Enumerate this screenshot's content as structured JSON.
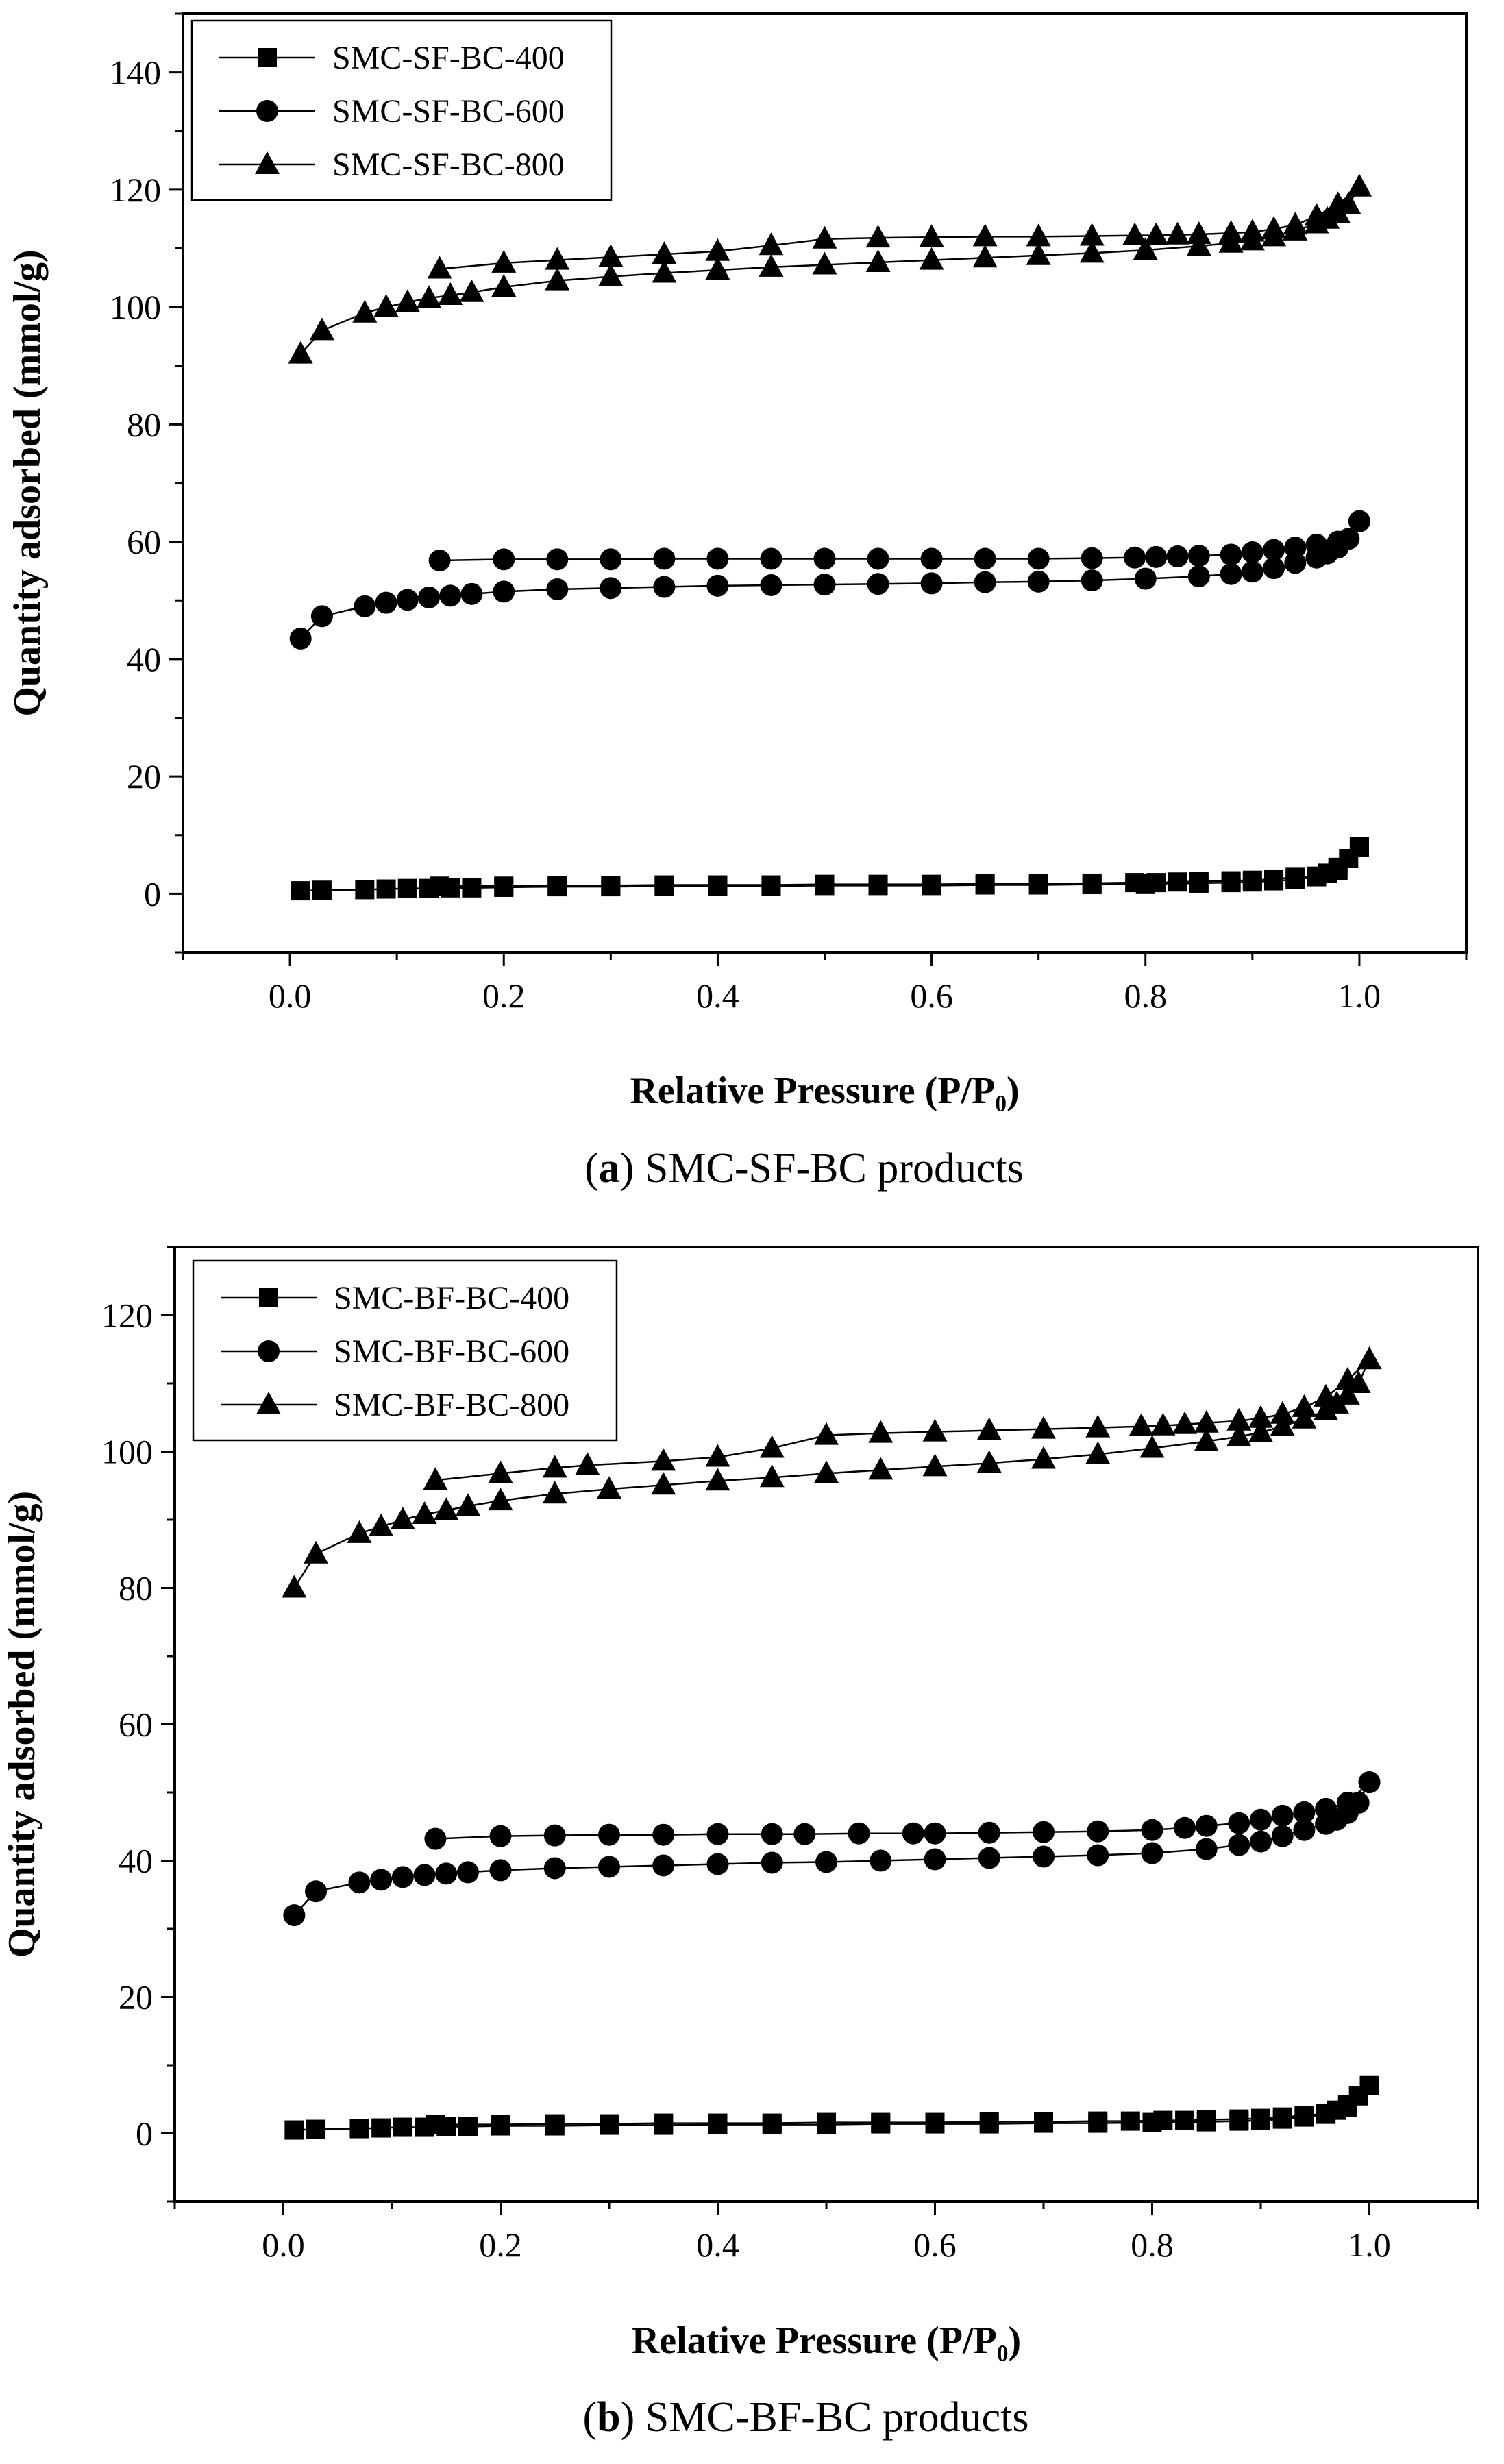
{
  "chart_data": [
    {
      "type": "scatter",
      "caption": {
        "letter": "a",
        "text": "SMC-SF-BC products"
      },
      "xlabel": "Relative Pressure (P/P₀)",
      "ylabel": "Quantity adsorbed (mmol/g)",
      "xlim": [
        -0.1,
        1.1
      ],
      "ylim": [
        -10,
        150
      ],
      "xticks": [
        0.0,
        0.2,
        0.4,
        0.6,
        0.8,
        1.0
      ],
      "xtick_labels": [
        "0.0",
        "0.2",
        "0.4",
        "0.6",
        "0.8",
        "1.0"
      ],
      "yticks": [
        0,
        20,
        40,
        60,
        80,
        100,
        120,
        140
      ],
      "ytick_labels": [
        "0",
        "20",
        "40",
        "60",
        "80",
        "100",
        "120",
        "140"
      ],
      "grid": false,
      "legend_position": "top-left",
      "series": [
        {
          "name": "SMC-SF-BC-400",
          "marker": "square",
          "adsorption": {
            "x": [
              0.01,
              0.03,
              0.07,
              0.09,
              0.11,
              0.13,
              0.15,
              0.17,
              0.2,
              0.25,
              0.3,
              0.35,
              0.4,
              0.45,
              0.5,
              0.55,
              0.6,
              0.65,
              0.7,
              0.75,
              0.8,
              0.85,
              0.88,
              0.9,
              0.92,
              0.94,
              0.96,
              0.97,
              0.98,
              0.99,
              1.0
            ],
            "y": [
              0.5,
              0.6,
              0.7,
              0.8,
              0.9,
              0.9,
              1.0,
              1.0,
              1.1,
              1.2,
              1.2,
              1.3,
              1.3,
              1.3,
              1.4,
              1.4,
              1.4,
              1.5,
              1.5,
              1.6,
              1.7,
              1.8,
              1.9,
              2.0,
              2.2,
              2.4,
              2.9,
              3.5,
              4.5,
              6.0,
              8.0
            ]
          },
          "desorption": {
            "x": [
              1.0,
              0.98,
              0.96,
              0.94,
              0.92,
              0.9,
              0.88,
              0.85,
              0.83,
              0.81,
              0.79,
              0.75,
              0.7,
              0.65,
              0.6,
              0.55,
              0.5,
              0.45,
              0.4,
              0.35,
              0.3,
              0.25,
              0.2,
              0.14
            ],
            "y": [
              8.0,
              4.0,
              3.0,
              2.8,
              2.5,
              2.3,
              2.2,
              2.1,
              2.0,
              1.9,
              1.9,
              1.8,
              1.7,
              1.7,
              1.6,
              1.6,
              1.6,
              1.5,
              1.5,
              1.5,
              1.4,
              1.4,
              1.3,
              1.3
            ]
          }
        },
        {
          "name": "SMC-SF-BC-600",
          "marker": "circle",
          "adsorption": {
            "x": [
              0.01,
              0.03,
              0.07,
              0.09,
              0.11,
              0.13,
              0.15,
              0.17,
              0.2,
              0.25,
              0.3,
              0.35,
              0.4,
              0.45,
              0.5,
              0.55,
              0.6,
              0.65,
              0.7,
              0.75,
              0.8,
              0.85,
              0.88,
              0.9,
              0.92,
              0.94,
              0.96,
              0.97,
              0.98,
              0.99,
              1.0
            ],
            "y": [
              43.5,
              47.3,
              49.0,
              49.6,
              50.1,
              50.5,
              50.8,
              51.1,
              51.5,
              51.9,
              52.1,
              52.3,
              52.5,
              52.6,
              52.7,
              52.8,
              52.9,
              53.1,
              53.2,
              53.4,
              53.7,
              54.1,
              54.5,
              54.9,
              55.5,
              56.4,
              57.3,
              58.0,
              59.0,
              60.5,
              63.5
            ]
          },
          "desorption": {
            "x": [
              1.0,
              0.98,
              0.96,
              0.94,
              0.92,
              0.9,
              0.88,
              0.85,
              0.83,
              0.81,
              0.79,
              0.75,
              0.7,
              0.65,
              0.6,
              0.55,
              0.5,
              0.45,
              0.4,
              0.35,
              0.3,
              0.25,
              0.2,
              0.14
            ],
            "y": [
              63.5,
              60.0,
              59.5,
              59.0,
              58.6,
              58.2,
              57.8,
              57.6,
              57.5,
              57.4,
              57.3,
              57.2,
              57.1,
              57.1,
              57.1,
              57.1,
              57.1,
              57.1,
              57.1,
              57.1,
              57.0,
              57.0,
              57.0,
              56.8
            ]
          }
        },
        {
          "name": "SMC-SF-BC-800",
          "marker": "triangle",
          "adsorption": {
            "x": [
              0.01,
              0.03,
              0.07,
              0.09,
              0.11,
              0.13,
              0.15,
              0.17,
              0.2,
              0.25,
              0.3,
              0.35,
              0.4,
              0.45,
              0.5,
              0.55,
              0.6,
              0.65,
              0.7,
              0.75,
              0.8,
              0.85,
              0.88,
              0.9,
              0.92,
              0.94,
              0.96,
              0.97,
              0.98,
              0.99,
              1.0
            ],
            "y": [
              92.0,
              96.0,
              99.0,
              100.0,
              100.8,
              101.5,
              102.0,
              102.5,
              103.4,
              104.5,
              105.2,
              105.8,
              106.3,
              106.8,
              107.2,
              107.6,
              108.0,
              108.4,
              108.8,
              109.2,
              109.7,
              110.4,
              110.9,
              111.3,
              112.0,
              113.0,
              114.2,
              115.0,
              116.0,
              117.5,
              120.5
            ]
          },
          "desorption": {
            "x": [
              1.0,
              0.98,
              0.96,
              0.94,
              0.92,
              0.9,
              0.88,
              0.85,
              0.83,
              0.81,
              0.79,
              0.75,
              0.7,
              0.65,
              0.6,
              0.55,
              0.5,
              0.45,
              0.4,
              0.35,
              0.3,
              0.25,
              0.2,
              0.14
            ],
            "y": [
              120.5,
              117.5,
              115.5,
              114.0,
              113.3,
              112.8,
              112.6,
              112.4,
              112.3,
              112.2,
              112.2,
              112.1,
              112.0,
              112.0,
              111.9,
              111.8,
              111.6,
              110.5,
              109.5,
              109.0,
              108.5,
              108.0,
              107.5,
              106.5
            ]
          }
        }
      ]
    },
    {
      "type": "scatter",
      "caption": {
        "letter": "b",
        "text": "SMC-BF-BC products"
      },
      "xlabel": "Relative Pressure (P/P₀)",
      "ylabel": "Quantity adsorbed (mmol/g)",
      "xlim": [
        -0.1,
        1.1
      ],
      "ylim": [
        -10,
        130
      ],
      "xticks": [
        0.0,
        0.2,
        0.4,
        0.6,
        0.8,
        1.0
      ],
      "xtick_labels": [
        "0.0",
        "0.2",
        "0.4",
        "0.6",
        "0.8",
        "1.0"
      ],
      "yticks": [
        0,
        20,
        40,
        60,
        80,
        100,
        120
      ],
      "ytick_labels": [
        "0",
        "20",
        "40",
        "60",
        "80",
        "100",
        "120"
      ],
      "grid": false,
      "legend_position": "top-left",
      "series": [
        {
          "name": "SMC-BF-BC-400",
          "marker": "square",
          "adsorption": {
            "x": [
              0.01,
              0.03,
              0.07,
              0.09,
              0.11,
              0.13,
              0.15,
              0.17,
              0.2,
              0.25,
              0.3,
              0.35,
              0.4,
              0.45,
              0.5,
              0.55,
              0.6,
              0.65,
              0.7,
              0.75,
              0.8,
              0.85,
              0.88,
              0.9,
              0.92,
              0.94,
              0.96,
              0.97,
              0.98,
              0.99,
              1.0
            ],
            "y": [
              0.5,
              0.6,
              0.7,
              0.8,
              0.9,
              0.9,
              1.0,
              1.0,
              1.1,
              1.1,
              1.2,
              1.2,
              1.3,
              1.3,
              1.3,
              1.4,
              1.4,
              1.4,
              1.5,
              1.5,
              1.6,
              1.7,
              1.8,
              1.9,
              2.1,
              2.4,
              2.8,
              3.4,
              4.2,
              5.5,
              7.0
            ]
          },
          "desorption": {
            "x": [
              1.0,
              0.98,
              0.96,
              0.94,
              0.92,
              0.9,
              0.88,
              0.85,
              0.83,
              0.81,
              0.78,
              0.75,
              0.7,
              0.65,
              0.6,
              0.55,
              0.5,
              0.45,
              0.4,
              0.35,
              0.3,
              0.25,
              0.2,
              0.14
            ],
            "y": [
              7.0,
              3.8,
              2.9,
              2.6,
              2.4,
              2.2,
              2.1,
              2.0,
              1.9,
              1.9,
              1.8,
              1.8,
              1.7,
              1.7,
              1.6,
              1.6,
              1.6,
              1.5,
              1.5,
              1.5,
              1.4,
              1.4,
              1.3,
              1.3
            ]
          }
        },
        {
          "name": "SMC-BF-BC-600",
          "marker": "circle",
          "adsorption": {
            "x": [
              0.01,
              0.03,
              0.07,
              0.09,
              0.11,
              0.13,
              0.15,
              0.17,
              0.2,
              0.25,
              0.3,
              0.35,
              0.4,
              0.45,
              0.5,
              0.55,
              0.6,
              0.65,
              0.7,
              0.75,
              0.8,
              0.85,
              0.88,
              0.9,
              0.92,
              0.94,
              0.96,
              0.97,
              0.98,
              0.99,
              1.0
            ],
            "y": [
              32.0,
              35.5,
              36.8,
              37.2,
              37.6,
              37.9,
              38.1,
              38.3,
              38.6,
              38.9,
              39.1,
              39.3,
              39.5,
              39.7,
              39.8,
              40.0,
              40.2,
              40.4,
              40.6,
              40.8,
              41.1,
              41.7,
              42.3,
              42.8,
              43.6,
              44.5,
              45.4,
              46.0,
              47.0,
              48.5,
              51.5
            ]
          },
          "desorption": {
            "x": [
              1.0,
              0.98,
              0.96,
              0.94,
              0.92,
              0.9,
              0.88,
              0.85,
              0.83,
              0.8,
              0.75,
              0.7,
              0.65,
              0.6,
              0.58,
              0.53,
              0.48,
              0.45,
              0.4,
              0.35,
              0.3,
              0.25,
              0.2,
              0.14
            ],
            "y": [
              51.5,
              48.5,
              47.6,
              47.1,
              46.6,
              46.0,
              45.5,
              45.1,
              44.8,
              44.5,
              44.3,
              44.2,
              44.1,
              44.0,
              44.0,
              44.0,
              43.9,
              43.9,
              43.9,
              43.8,
              43.8,
              43.7,
              43.6,
              43.2
            ]
          }
        },
        {
          "name": "SMC-BF-BC-800",
          "marker": "triangle",
          "adsorption": {
            "x": [
              0.01,
              0.03,
              0.07,
              0.09,
              0.11,
              0.13,
              0.15,
              0.17,
              0.2,
              0.25,
              0.3,
              0.35,
              0.4,
              0.45,
              0.5,
              0.55,
              0.6,
              0.65,
              0.7,
              0.75,
              0.8,
              0.85,
              0.88,
              0.9,
              0.92,
              0.94,
              0.96,
              0.97,
              0.98,
              0.99,
              1.0
            ],
            "y": [
              80.0,
              85.0,
              88.0,
              89.0,
              90.0,
              90.8,
              91.4,
              92.0,
              92.8,
              93.8,
              94.5,
              95.1,
              95.7,
              96.2,
              96.8,
              97.3,
              97.8,
              98.3,
              98.9,
              99.6,
              100.5,
              101.5,
              102.2,
              102.8,
              103.7,
              104.8,
              106.0,
              107.0,
              108.3,
              110.0,
              113.5
            ]
          },
          "desorption": {
            "x": [
              1.0,
              0.98,
              0.96,
              0.94,
              0.92,
              0.9,
              0.88,
              0.85,
              0.83,
              0.81,
              0.79,
              0.75,
              0.7,
              0.65,
              0.6,
              0.55,
              0.5,
              0.45,
              0.4,
              0.35,
              0.28,
              0.25,
              0.2,
              0.14
            ],
            "y": [
              113.5,
              110.5,
              108.0,
              106.5,
              105.5,
              104.9,
              104.5,
              104.2,
              104.0,
              103.8,
              103.7,
              103.5,
              103.3,
              103.1,
              102.9,
              102.7,
              102.4,
              100.5,
              99.2,
              98.6,
              98.0,
              97.6,
              96.8,
              95.8
            ]
          }
        }
      ]
    }
  ]
}
